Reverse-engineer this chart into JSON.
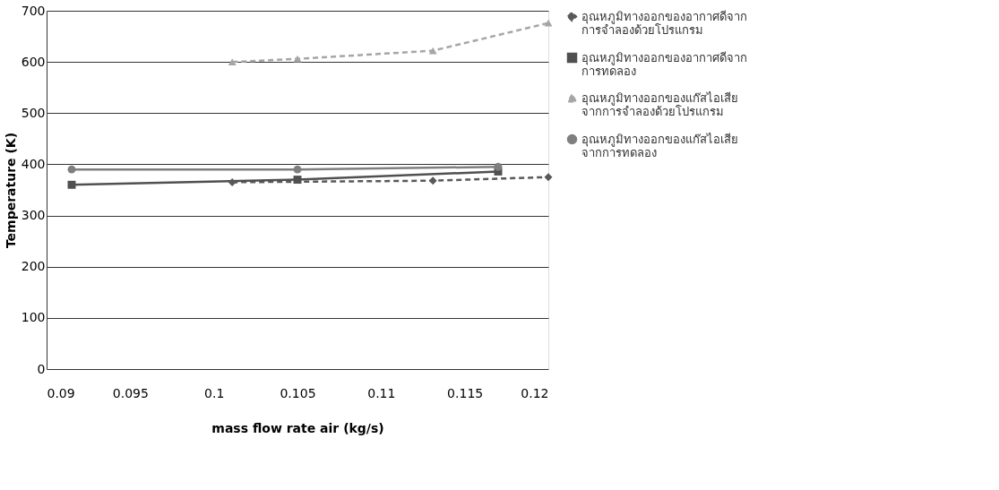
{
  "chart_data": {
    "type": "line",
    "xlabel": "mass flow rate air (kg/s)",
    "ylabel": "Temperature (K)",
    "xlim": [
      0.09,
      0.12
    ],
    "xticks": [
      0.09,
      0.095,
      0.1,
      0.105,
      0.11,
      0.115,
      0.12
    ],
    "ylim": [
      0,
      700
    ],
    "yticks": [
      0,
      100,
      200,
      300,
      400,
      500,
      600,
      700
    ],
    "grid": "y",
    "legend": "right",
    "series": [
      {
        "name": "อุณหภูมิทางออกของอากาศดีจากการจำลองด้วยโปรแกรม",
        "color": "#595959",
        "marker": "diamond",
        "line_style": "dashed",
        "x": [
          0.1011,
          0.1131,
          0.12
        ],
        "values": [
          365,
          368,
          375
        ]
      },
      {
        "name": "อุณหภูมิทางออกของอากาศดีจากการทดลอง",
        "color": "#505050",
        "marker": "square",
        "line_style": "solid",
        "x": [
          0.0915,
          0.105,
          0.117
        ],
        "values": [
          360,
          370,
          386
        ]
      },
      {
        "name": "อุณหภูมิทางออกของแก๊สไอเสียจากการจำลองด้วยโปรแกรม",
        "color": "#a6a6a6",
        "marker": "triangle",
        "line_style": "dashed",
        "x": [
          0.1011,
          0.105,
          0.1131,
          0.12
        ],
        "values": [
          600,
          606,
          622,
          676
        ]
      },
      {
        "name": "อุณหภูมิทางออกของแก๊สไอเสียจากการทดลอง",
        "color": "#7f7f7f",
        "marker": "circle",
        "line_style": "solid",
        "x": [
          0.0915,
          0.105,
          0.117
        ],
        "values": [
          390,
          390,
          395
        ]
      }
    ]
  }
}
